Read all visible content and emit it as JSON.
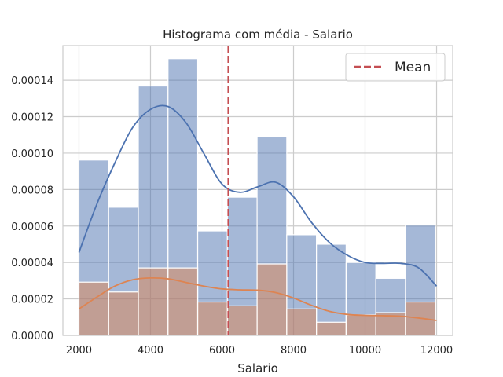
{
  "chart_data": {
    "type": "bar",
    "title": "Histograma com média - Salario",
    "xlabel": "Salario",
    "ylabel": "",
    "xlim": [
      1550,
      12450
    ],
    "ylim": [
      0,
      0.000159
    ],
    "grid": true,
    "legend": {
      "placement": "top-right",
      "entries": [
        {
          "label": "Mean",
          "style": "dashed",
          "color": "#c44e52"
        }
      ]
    },
    "x_ticks": [
      2000,
      4000,
      6000,
      8000,
      10000,
      12000
    ],
    "x_tick_labels": [
      "2000",
      "4000",
      "6000",
      "8000",
      "10000",
      "12000"
    ],
    "y_ticks": [
      0,
      2e-05,
      4e-05,
      6e-05,
      8e-05,
      0.0001,
      0.00012,
      0.00014
    ],
    "y_tick_labels": [
      "0.00000",
      "0.00002",
      "0.00004",
      "0.00006",
      "0.00008",
      "0.00010",
      "0.00012",
      "0.00014"
    ],
    "mean": 6180,
    "histograms": [
      {
        "color": "#4c72b0",
        "bin_edges": [
          2000,
          2830,
          3660,
          4490,
          5320,
          6150,
          6980,
          7810,
          8640,
          9470,
          10300,
          11130,
          11960
        ],
        "values": [
          9.62e-05,
          7.03e-05,
          0.0001368,
          0.0001518,
          5.73e-05,
          7.58e-05,
          0.000109,
          5.52e-05,
          5e-05,
          4e-05,
          3.13e-05,
          6.05e-05
        ]
      },
      {
        "color": "#dd8452",
        "bin_edges": [
          2000,
          2830,
          3660,
          4490,
          5320,
          6150,
          6980,
          7810,
          8640,
          9470,
          10300,
          11130,
          11960
        ],
        "values": [
          2.92e-05,
          2.38e-05,
          3.7e-05,
          3.7e-05,
          1.83e-05,
          1.62e-05,
          3.92e-05,
          1.45e-05,
          7.2e-06,
          1.12e-05,
          1.25e-05,
          1.83e-05
        ]
      }
    ],
    "kde_lines": [
      {
        "color": "#4c72b0",
        "x": [
          2000,
          2500,
          3000,
          3500,
          4000,
          4500,
          5000,
          5500,
          6000,
          6500,
          7000,
          7500,
          8000,
          8500,
          9000,
          9500,
          10000,
          10500,
          11000,
          11500,
          12000
        ],
        "y": [
          4.55e-05,
          7.2e-05,
          9.45e-05,
          0.000114,
          0.000124,
          0.0001255,
          0.0001165,
          9.95e-05,
          8.3e-05,
          7.85e-05,
          8.15e-05,
          8.4e-05,
          7.6e-05,
          6.2e-05,
          5.1e-05,
          4.4e-05,
          4e-05,
          3.95e-05,
          3.95e-05,
          3.7e-05,
          2.7e-05
        ]
      },
      {
        "color": "#dd8452",
        "x": [
          2000,
          2500,
          3000,
          3500,
          4000,
          4500,
          5000,
          5500,
          6000,
          6500,
          7000,
          7500,
          8000,
          8500,
          9000,
          9500,
          10000,
          10500,
          11000,
          11500,
          12000
        ],
        "y": [
          1.45e-05,
          2.1e-05,
          2.7e-05,
          3.05e-05,
          3.15e-05,
          3.1e-05,
          2.9e-05,
          2.7e-05,
          2.55e-05,
          2.5e-05,
          2.48e-05,
          2.35e-05,
          2.05e-05,
          1.65e-05,
          1.32e-05,
          1.15e-05,
          1.1e-05,
          1.08e-05,
          1.05e-05,
          9.5e-06,
          8.2e-06
        ]
      }
    ]
  }
}
